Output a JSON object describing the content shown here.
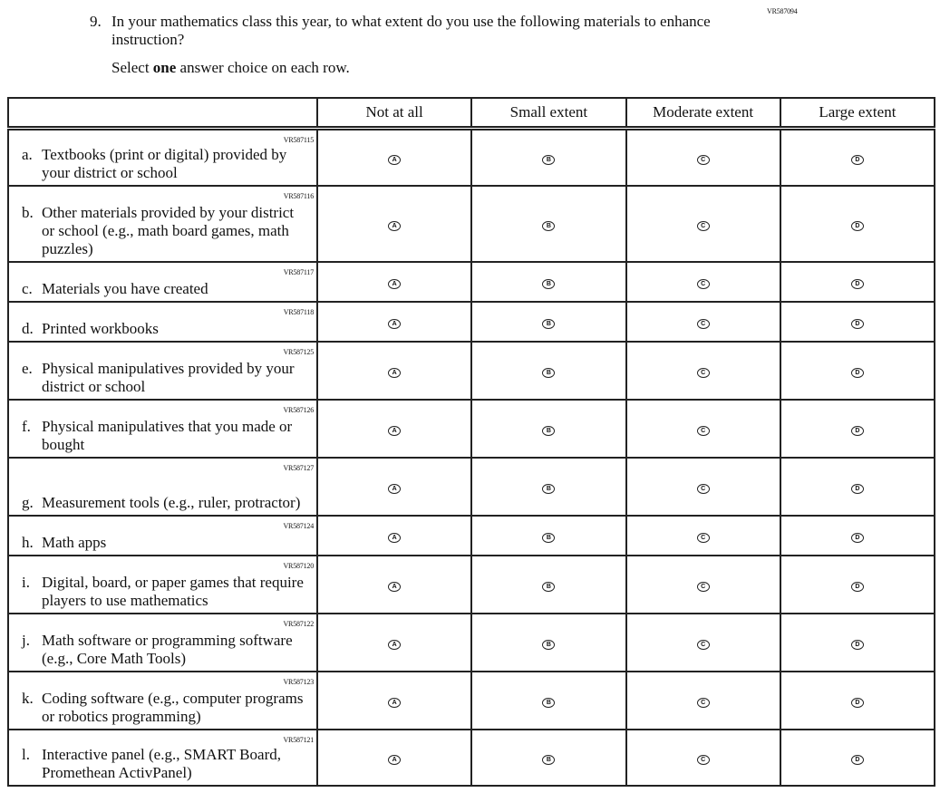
{
  "question": {
    "code": "VR587094",
    "number": "9.",
    "text": "In your mathematics class this year, to what extent do you use the following materials to enhance instruction?",
    "instruction_pre": "Select ",
    "instruction_bold": "one",
    "instruction_post": " answer choice on each row."
  },
  "columns": [
    "Not at all",
    "Small extent",
    "Moderate extent",
    "Large extent"
  ],
  "bubbles": [
    "A",
    "B",
    "C",
    "D"
  ],
  "rows": [
    {
      "code": "VR587115",
      "letter": "a.",
      "label": "Textbooks (print or digital) provided by your district or school"
    },
    {
      "code": "VR587116",
      "letter": "b.",
      "label": "Other materials provided by your district or school (e.g., math board games, math puzzles)"
    },
    {
      "code": "VR587117",
      "letter": "c.",
      "label": "Materials you have created"
    },
    {
      "code": "VR587118",
      "letter": "d.",
      "label": "Printed workbooks"
    },
    {
      "code": "VR587125",
      "letter": "e.",
      "label": "Physical manipulatives provided by your district or school"
    },
    {
      "code": "VR587126",
      "letter": "f.",
      "label": "Physical manipulatives that you made or bought"
    },
    {
      "code": "VR587127",
      "letter": "g.",
      "label": "Measurement tools (e.g., ruler, protractor)"
    },
    {
      "code": "VR587124",
      "letter": "h.",
      "label": "Math apps"
    },
    {
      "code": "VR587120",
      "letter": "i.",
      "label": "Digital, board, or paper games that require players to use mathematics"
    },
    {
      "code": "VR587122",
      "letter": "j.",
      "label": "Math software or programming software (e.g., Core Math Tools)"
    },
    {
      "code": "VR587123",
      "letter": "k.",
      "label": "Coding software (e.g., computer programs or robotics programming)"
    },
    {
      "code": "VR587121",
      "letter": "l.",
      "label": "Interactive panel (e.g., SMART Board, Promethean ActivPanel)"
    }
  ]
}
